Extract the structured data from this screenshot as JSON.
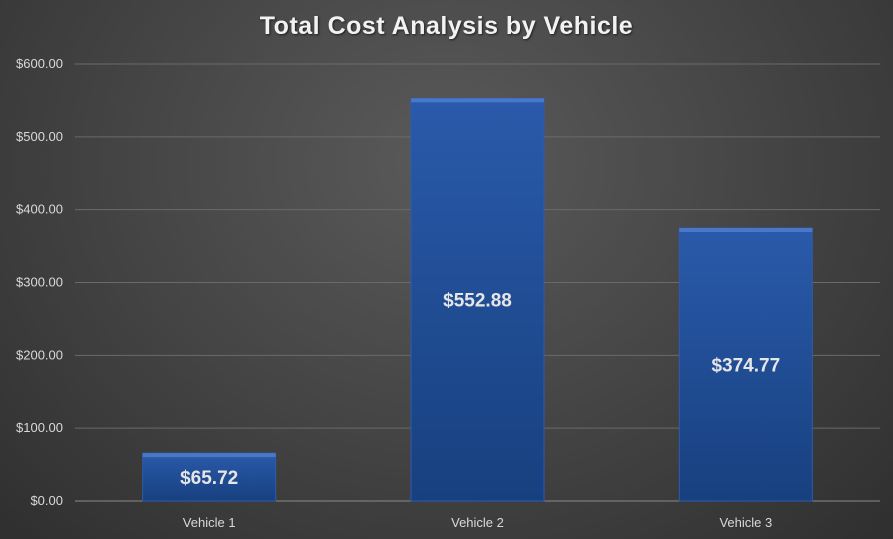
{
  "chart_data": {
    "type": "bar",
    "title": "Total Cost Analysis by Vehicle",
    "categories": [
      "Vehicle 1",
      "Vehicle 2",
      "Vehicle 3"
    ],
    "values": [
      65.72,
      552.88,
      374.77
    ],
    "data_labels": [
      "$65.72",
      "$552.88",
      "$374.77"
    ],
    "y_ticks": [
      0,
      100,
      200,
      300,
      400,
      500,
      600
    ],
    "y_tick_labels": [
      "$0.00",
      "$100.00",
      "$200.00",
      "$300.00",
      "$400.00",
      "$500.00",
      "$600.00"
    ],
    "ylim": [
      0,
      600
    ],
    "grid": true,
    "legend": "none",
    "xlabel": "",
    "ylabel": ""
  },
  "colors": {
    "bar_fill": "#1f4e9c",
    "bar_top": "#4a78c8",
    "gridline": "#6a6a6a",
    "text": "#d9d9d9"
  }
}
